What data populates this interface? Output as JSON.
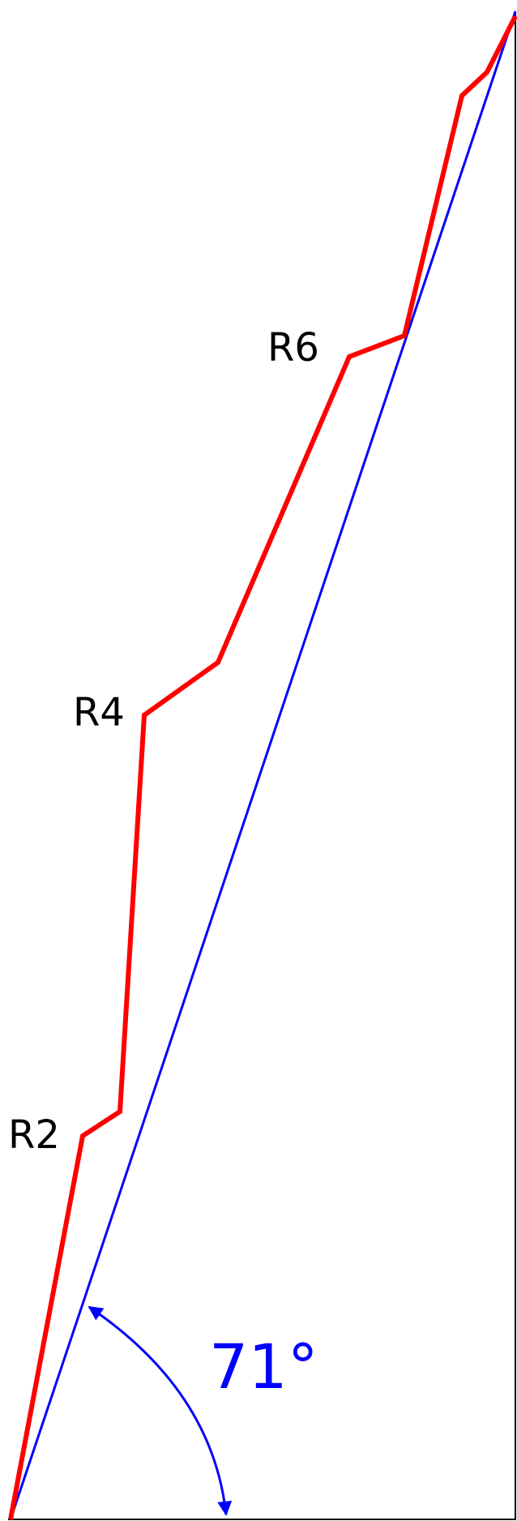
{
  "labels": {
    "r2": "R2",
    "r4": "R4",
    "r6": "R6"
  },
  "angle": {
    "text": "71°",
    "value_degrees": 71
  },
  "colors": {
    "path": "#ff0000",
    "straight_line": "#0000ff",
    "angle": "#0000ff",
    "frame": "#000000",
    "background": "#ffffff"
  }
}
